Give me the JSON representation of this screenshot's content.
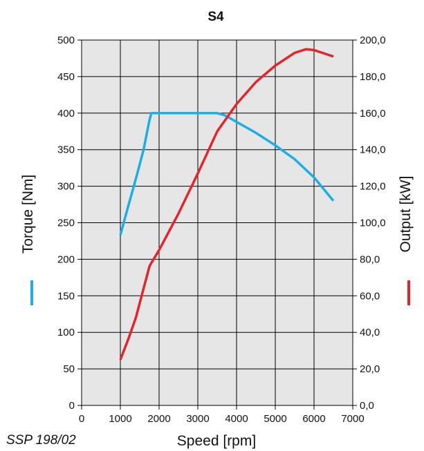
{
  "chart_data": {
    "type": "line",
    "title": "S4",
    "xlabel": "Speed [rpm]",
    "ylabel_left": "Torque [Nm]",
    "ylabel_right": "Output [kW]",
    "reference": "SSP 198/02",
    "xlim": [
      0,
      7000
    ],
    "ylim_left": [
      0,
      500
    ],
    "ylim_right": [
      0,
      200
    ],
    "x_ticks": [
      "0",
      "1000",
      "2000",
      "3000",
      "4000",
      "5000",
      "6000",
      "7000"
    ],
    "y_left_ticks": [
      "0",
      "50",
      "100",
      "150",
      "200",
      "250",
      "300",
      "350",
      "400",
      "450",
      "500"
    ],
    "y_right_ticks": [
      "0,0",
      "20,0",
      "40,0",
      "60,0",
      "80,0",
      "100,0",
      "120,0",
      "140,0",
      "160,0",
      "180,0",
      "200,0"
    ],
    "grid": true,
    "plot_background": "#e6e6e6",
    "series": [
      {
        "name": "Torque",
        "axis": "left",
        "color": "#1aaee6",
        "x": [
          1000,
          1200,
          1400,
          1600,
          1750,
          1800,
          1900,
          2500,
          3000,
          3500,
          3700,
          4000,
          4500,
          5000,
          5500,
          6000,
          6500
        ],
        "y": [
          233,
          272,
          310,
          350,
          390,
          400,
          400,
          400,
          400,
          400,
          397,
          388,
          373,
          356,
          337,
          312,
          280
        ]
      },
      {
        "name": "Output",
        "axis": "right",
        "color": "#e3242b",
        "x": [
          1000,
          1200,
          1400,
          1600,
          1750,
          1800,
          2000,
          2500,
          3000,
          3500,
          4000,
          4500,
          5000,
          5500,
          5800,
          6000,
          6500
        ],
        "y": [
          25,
          36,
          48,
          64,
          76,
          78,
          85,
          105,
          127,
          150,
          165,
          177,
          186,
          193,
          195,
          194.5,
          191
        ]
      }
    ]
  }
}
